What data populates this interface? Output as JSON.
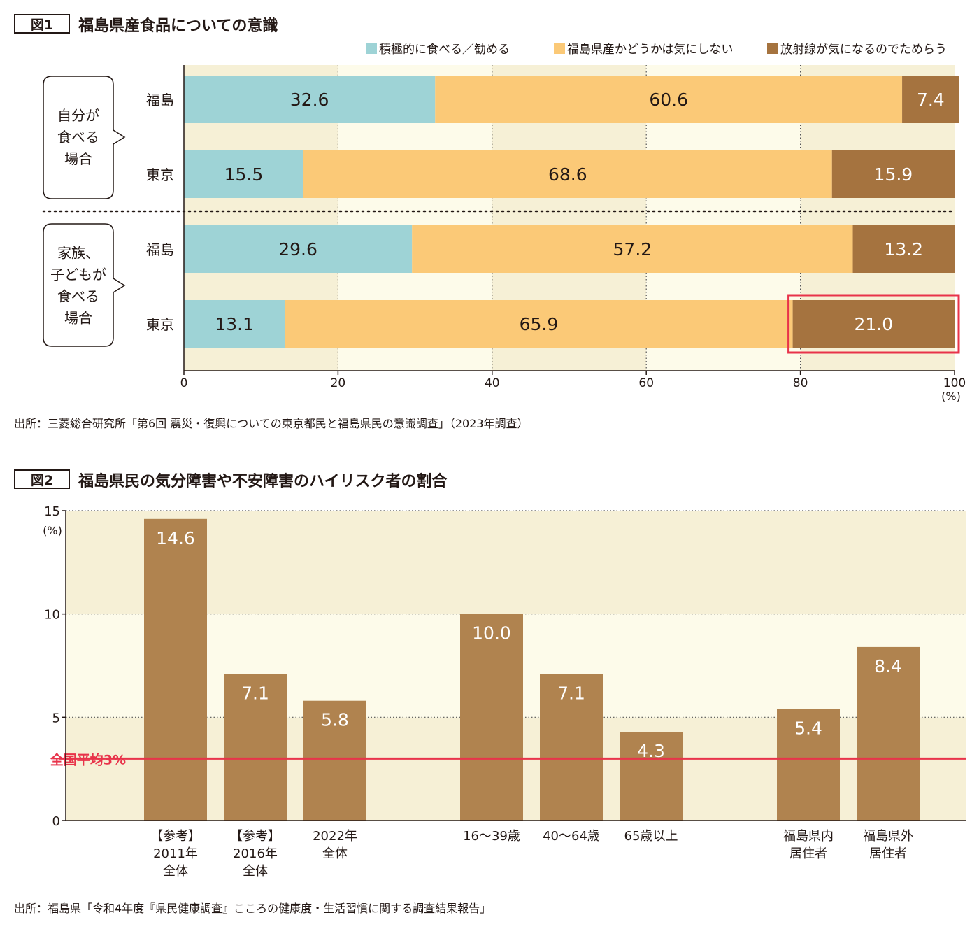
{
  "colors": {
    "actively": "#9ed3d6",
    "not_care": "#fbc977",
    "hesitate": "#a5733f",
    "bar2": "#b0834f",
    "highlight": "#e8334a",
    "band_a": "#f6f0d6",
    "band_b": "#fdfbea"
  },
  "figure1": {
    "label": "図1",
    "title": "福島県産食品についての意識",
    "source": "出所：三菱総合研究所「第6回 震災・復興についての東京都民と福島県民の意識調査」（2023年調査）",
    "chart_data": {
      "type": "bar",
      "orientation": "horizontal",
      "stacked": true,
      "xlim": [
        0,
        100
      ],
      "x_ticks": [
        0,
        20,
        40,
        60,
        80,
        100
      ],
      "x_unit": "(%)",
      "legend_position": "top-right",
      "groups": [
        {
          "label": "自分が\n食べる\n場合",
          "rows": [
            "福島",
            "東京"
          ]
        },
        {
          "label": "家族、\n子どもが\n食べる\n場合",
          "rows": [
            "福島",
            "東京"
          ]
        }
      ],
      "categories": [
        "福島",
        "東京",
        "福島",
        "東京"
      ],
      "series": [
        {
          "name": "積極的に食べる／勧める",
          "color_key": "actively",
          "values": [
            32.6,
            15.5,
            29.6,
            13.1
          ],
          "labels": [
            "32.6",
            "15.5",
            "29.6",
            "13.1"
          ]
        },
        {
          "name": "福島県産かどうかは気にしない",
          "color_key": "not_care",
          "values": [
            60.6,
            68.6,
            57.2,
            65.9
          ],
          "labels": [
            "60.6",
            "68.6",
            "57.2",
            "65.9"
          ]
        },
        {
          "name": "放射線が気になるのでためらう",
          "color_key": "hesitate",
          "values": [
            7.4,
            15.9,
            13.2,
            21.0
          ],
          "labels": [
            "7.4",
            "15.9",
            "13.2",
            "21.0"
          ]
        }
      ],
      "highlight": {
        "row": 3,
        "series": 2
      }
    }
  },
  "figure2": {
    "label": "図2",
    "title": "福島県民の気分障害や不安障害のハイリスク者の割合",
    "source": "出所：福島県「令和4年度『県民健康調査』こころの健康度・生活習慣に関する調査結果報告」",
    "chart_data": {
      "type": "bar",
      "ylim": [
        0,
        15
      ],
      "y_ticks": [
        0,
        5,
        10,
        15
      ],
      "y_unit": "(%)",
      "categories": [
        "【参考】\n2011年\n全体",
        "【参考】\n2016年\n全体",
        "2022年\n全体",
        "16〜39歳",
        "40〜64歳",
        "65歳以上",
        "福島県内\n居住者",
        "福島県外\n居住者"
      ],
      "values": [
        14.6,
        7.1,
        5.8,
        10.0,
        7.1,
        4.3,
        5.4,
        8.4
      ],
      "value_labels": [
        "14.6",
        "7.1",
        "5.8",
        "10.0",
        "7.1",
        "4.3",
        "5.4",
        "8.4"
      ],
      "reference_line": {
        "value": 3,
        "label": "全国平均3%"
      }
    }
  }
}
